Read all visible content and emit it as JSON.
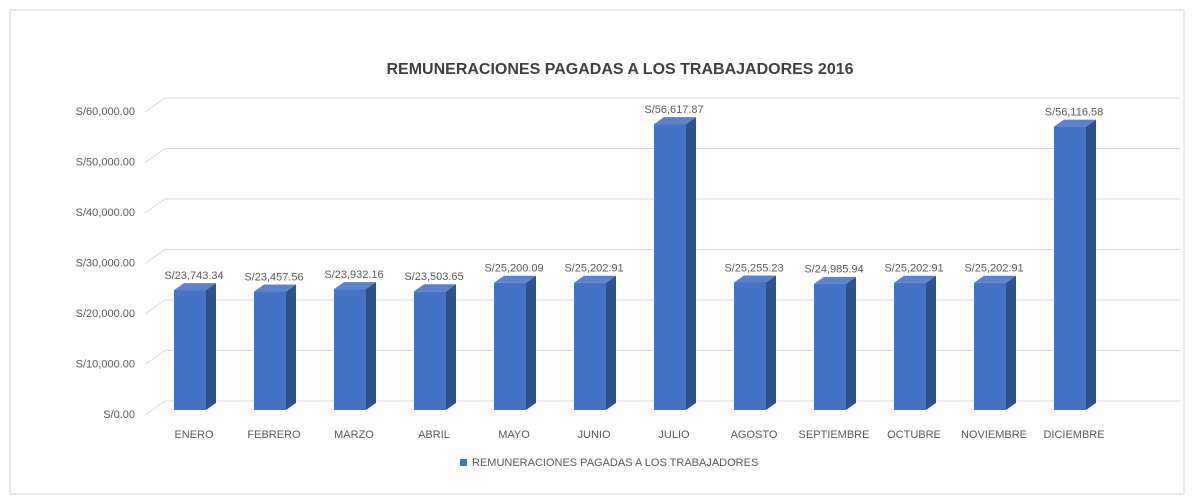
{
  "chart_data": {
    "type": "bar3d",
    "title": "REMUNERACIONES PAGADAS A LOS TRABAJADORES 2016",
    "categories": [
      "ENERO",
      "FEBRERO",
      "MARZO",
      "ABRIL",
      "MAYO",
      "JUNIO",
      "JULIO",
      "AGOSTO",
      "SEPTIEMBRE",
      "OCTUBRE",
      "NOVIEMBRE",
      "DICIEMBRE"
    ],
    "series": [
      {
        "name": "REMUNERACIONES PAGADAS A LOS TRABAJADORES",
        "color": "#4472c4",
        "values": [
          23743.34,
          23457.56,
          23932.16,
          23503.65,
          25200.09,
          25202.91,
          56617.87,
          25255.23,
          24985.94,
          25202.91,
          25202.91,
          56116.58
        ],
        "value_labels": [
          "S/23,743.34",
          "S/23,457.56",
          "S/23,932.16",
          "S/23,503.65",
          "S/25,200.09",
          "S/25,202.91",
          "S/56,617.87",
          "S/25,255.23",
          "S/24,985.94",
          "S/25,202.91",
          "S/25,202.91",
          "S/56,116.58"
        ]
      }
    ],
    "ylim": [
      0,
      60000
    ],
    "yticks": [
      {
        "value": 0,
        "label": "S/0.00"
      },
      {
        "value": 10000,
        "label": "S/10,000.00"
      },
      {
        "value": 20000,
        "label": "S/20,000.00"
      },
      {
        "value": 30000,
        "label": "S/30,000.00"
      },
      {
        "value": 40000,
        "label": "S/40,000.00"
      },
      {
        "value": 50000,
        "label": "S/50,000.00"
      },
      {
        "value": 60000,
        "label": "S/60,000.00"
      }
    ],
    "grid": true,
    "legend": "bottom"
  }
}
